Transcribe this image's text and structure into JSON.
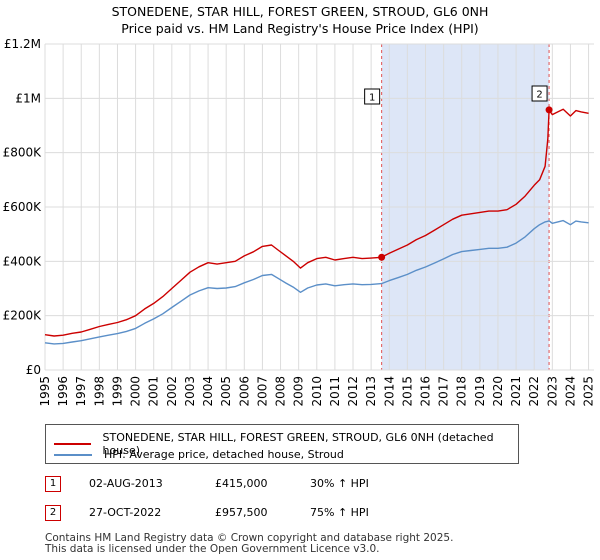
{
  "title_line1": "STONEDENE, STAR HILL, FOREST GREEN, STROUD, GL6 0NH",
  "title_line2": "Price paid vs. HM Land Registry's House Price Index (HPI)",
  "colors": {
    "property": "#cc0000",
    "hpi": "#5b8fc8",
    "shade": "#dde6f7",
    "grid": "#dcdcdc"
  },
  "chart_data": {
    "type": "line",
    "title": "STONEDENE, STAR HILL, FOREST GREEN, STROUD, GL6 0NH",
    "subtitle": "Price paid vs. HM Land Registry's House Price Index (HPI)",
    "xlim": [
      1995,
      2025.3
    ],
    "ylim": [
      0,
      1200000
    ],
    "yticks": [
      0,
      200000,
      400000,
      600000,
      800000,
      1000000,
      1200000
    ],
    "ytick_labels": [
      "£0",
      "£200K",
      "£400K",
      "£600K",
      "£800K",
      "£1M",
      "£1.2M"
    ],
    "xticks": [
      1995,
      1996,
      1997,
      1998,
      1999,
      2000,
      2001,
      2002,
      2003,
      2004,
      2005,
      2006,
      2007,
      2008,
      2009,
      2010,
      2011,
      2012,
      2013,
      2014,
      2015,
      2016,
      2017,
      2018,
      2019,
      2020,
      2021,
      2022,
      2023,
      2024,
      2025
    ],
    "grid": true,
    "shaded_region": [
      2013.58,
      2022.82
    ],
    "series": [
      {
        "name": "STONEDENE, STAR HILL, FOREST GREEN, STROUD, GL6 0NH (detached house)",
        "color": "#cc0000",
        "x": [
          1995,
          1995.5,
          1996,
          1996.5,
          1997,
          1997.5,
          1998,
          1998.5,
          1999,
          1999.5,
          2000,
          2000.5,
          2001,
          2001.5,
          2002,
          2002.5,
          2003,
          2003.5,
          2004,
          2004.5,
          2005,
          2005.5,
          2006,
          2006.5,
          2007,
          2007.5,
          2007.9,
          2008.3,
          2008.7,
          2009.1,
          2009.5,
          2010,
          2010.5,
          2011,
          2011.5,
          2012,
          2012.5,
          2013,
          2013.58,
          2014,
          2014.5,
          2015,
          2015.5,
          2016,
          2016.5,
          2017,
          2017.5,
          2018,
          2018.5,
          2019,
          2019.5,
          2020,
          2020.5,
          2021,
          2021.5,
          2022,
          2022.3,
          2022.6,
          2022.75,
          2022.82,
          2023,
          2023.3,
          2023.6,
          2024,
          2024.3,
          2024.6,
          2025
        ],
        "values": [
          130000,
          125000,
          128000,
          135000,
          140000,
          150000,
          160000,
          168000,
          175000,
          185000,
          200000,
          225000,
          245000,
          270000,
          300000,
          330000,
          360000,
          380000,
          395000,
          390000,
          395000,
          400000,
          420000,
          435000,
          455000,
          460000,
          440000,
          420000,
          400000,
          375000,
          395000,
          410000,
          415000,
          405000,
          410000,
          415000,
          410000,
          412000,
          415000,
          430000,
          445000,
          460000,
          480000,
          495000,
          515000,
          535000,
          555000,
          570000,
          575000,
          580000,
          585000,
          585000,
          590000,
          610000,
          640000,
          680000,
          700000,
          750000,
          850000,
          957500,
          940000,
          950000,
          960000,
          935000,
          955000,
          950000,
          945000
        ]
      },
      {
        "name": "HPI: Average price, detached house, Stroud",
        "color": "#5b8fc8",
        "x": [
          1995,
          1995.5,
          1996,
          1996.5,
          1997,
          1997.5,
          1998,
          1998.5,
          1999,
          1999.5,
          2000,
          2000.5,
          2001,
          2001.5,
          2002,
          2002.5,
          2003,
          2003.5,
          2004,
          2004.5,
          2005,
          2005.5,
          2006,
          2006.5,
          2007,
          2007.5,
          2007.9,
          2008.3,
          2008.7,
          2009.1,
          2009.5,
          2010,
          2010.5,
          2011,
          2011.5,
          2012,
          2012.5,
          2013,
          2013.58,
          2014,
          2014.5,
          2015,
          2015.5,
          2016,
          2016.5,
          2017,
          2017.5,
          2018,
          2018.5,
          2019,
          2019.5,
          2020,
          2020.5,
          2021,
          2021.5,
          2022,
          2022.3,
          2022.6,
          2022.82,
          2023,
          2023.3,
          2023.6,
          2024,
          2024.3,
          2024.6,
          2025
        ],
        "values": [
          100000,
          96000,
          98000,
          103000,
          108000,
          115000,
          122000,
          128000,
          134000,
          142000,
          153000,
          172000,
          188000,
          207000,
          230000,
          253000,
          276000,
          291000,
          303000,
          300000,
          302000,
          307000,
          321000,
          333000,
          348000,
          352000,
          336000,
          320000,
          305000,
          286000,
          302000,
          313000,
          317000,
          310000,
          314000,
          317000,
          314000,
          315000,
          318000,
          329000,
          340000,
          352000,
          367000,
          379000,
          394000,
          409000,
          425000,
          436000,
          440000,
          444000,
          448000,
          448000,
          452000,
          467000,
          490000,
          520000,
          535000,
          545000,
          549000,
          540000,
          545000,
          550000,
          535000,
          548000,
          545000,
          542000
        ]
      }
    ],
    "annotations": [
      {
        "label": "1",
        "x": 2013.58,
        "y": 415000
      },
      {
        "label": "2",
        "x": 2022.82,
        "y": 957500
      }
    ]
  },
  "legend": {
    "property_label": "STONEDENE, STAR HILL, FOREST GREEN, STROUD, GL6 0NH (detached house)",
    "hpi_label": "HPI: Average price, detached house, Stroud"
  },
  "transactions": [
    {
      "num": "1",
      "date": "02-AUG-2013",
      "price": "£415,000",
      "hpi": "30% ↑ HPI"
    },
    {
      "num": "2",
      "date": "27-OCT-2022",
      "price": "£957,500",
      "hpi": "75% ↑ HPI"
    }
  ],
  "footer": {
    "line1": "Contains HM Land Registry data © Crown copyright and database right 2025.",
    "line2": "This data is licensed under the Open Government Licence v3.0."
  }
}
